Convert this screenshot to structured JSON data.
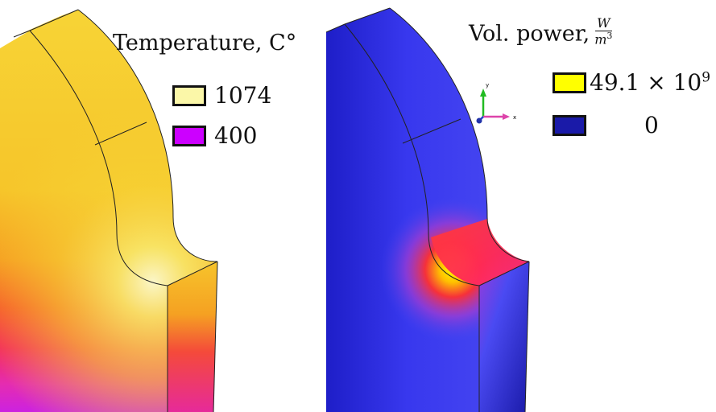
{
  "temperature_panel": {
    "title": "Temperature, C°",
    "legend": [
      {
        "label": "1074",
        "color": "#fbf7a8"
      },
      {
        "label": "400",
        "color": "#cc00ff"
      }
    ]
  },
  "power_panel": {
    "title": "Vol.  power,",
    "unit_numerator": "W",
    "unit_denominator": "m",
    "unit_exponent": "3",
    "legend": [
      {
        "label_mantissa": "49.1 × 10",
        "label_exponent": "9",
        "color": "#ffff00"
      },
      {
        "label": "0",
        "color": "#1a1aa8"
      }
    ],
    "axis_triad": {
      "y_label": "y",
      "x_label": "x"
    }
  }
}
